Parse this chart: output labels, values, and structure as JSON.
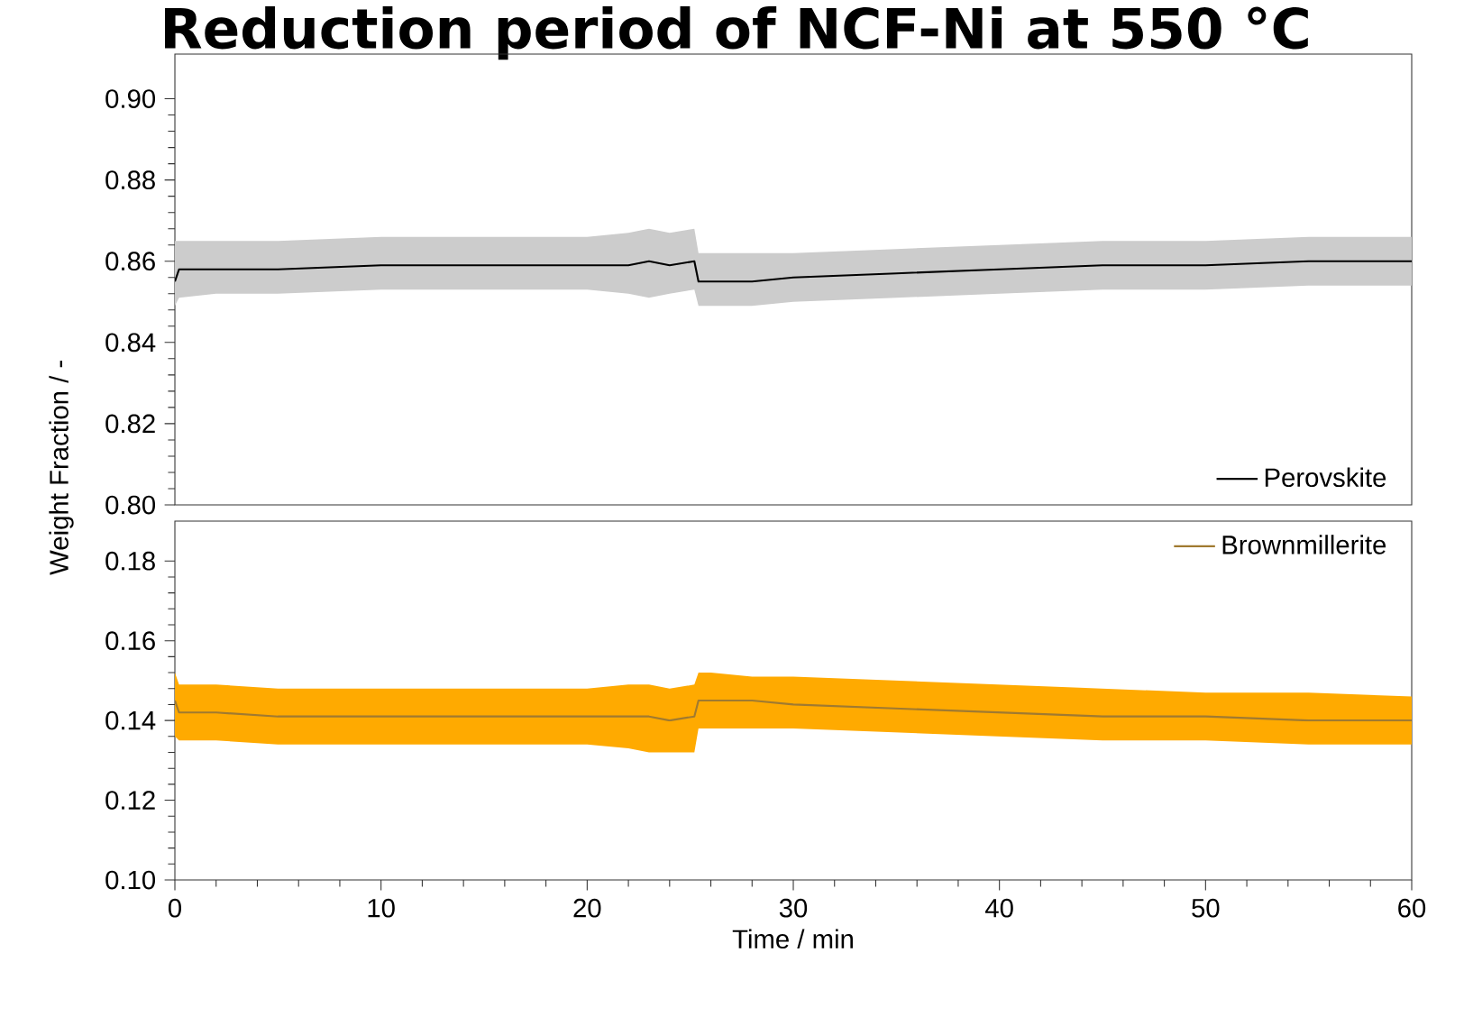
{
  "chart_data": [
    {
      "type": "line",
      "title": "Reduction period of NCF-Ni at 550 °C",
      "xlim": [
        0,
        60
      ],
      "ylim": [
        0.8,
        0.911
      ],
      "yticks": [
        {
          "value": 0.8,
          "label": "0.80"
        },
        0.82,
        0.84,
        0.86,
        0.88,
        {
          "value": 0.9,
          "label": "0.90"
        }
      ],
      "legend": "bottom right",
      "x": [
        0,
        0.2,
        2,
        5,
        10,
        15,
        20,
        22,
        23,
        24,
        25.2,
        25.4,
        26,
        28,
        30,
        35,
        40,
        45,
        50,
        55,
        60
      ],
      "series": [
        {
          "name": "Perovskite",
          "color": "#000000",
          "values": [
            0.855,
            0.858,
            0.858,
            0.858,
            0.859,
            0.859,
            0.859,
            0.859,
            0.86,
            0.859,
            0.86,
            0.855,
            0.855,
            0.855,
            0.856,
            0.857,
            0.858,
            0.859,
            0.859,
            0.86,
            0.86
          ],
          "lower": [
            0.849,
            0.851,
            0.852,
            0.852,
            0.853,
            0.853,
            0.853,
            0.852,
            0.851,
            0.852,
            0.853,
            0.849,
            0.849,
            0.849,
            0.85,
            0.851,
            0.852,
            0.853,
            0.853,
            0.854,
            0.854
          ],
          "upper": [
            0.865,
            0.865,
            0.865,
            0.865,
            0.866,
            0.866,
            0.866,
            0.867,
            0.868,
            0.867,
            0.868,
            0.862,
            0.862,
            0.862,
            0.862,
            0.863,
            0.864,
            0.865,
            0.865,
            0.866,
            0.866
          ]
        }
      ]
    },
    {
      "type": "line",
      "xlabel": "Time / min",
      "ylabel": "Weight Fraction / -",
      "xlim": [
        0,
        60
      ],
      "xticks": [
        0,
        10,
        20,
        30,
        40,
        50,
        60
      ],
      "ylim": [
        0.1,
        0.19
      ],
      "yticks": [
        {
          "value": 0.1,
          "label": "0.10"
        },
        0.12,
        0.14,
        0.16,
        0.18
      ],
      "legend": "top right",
      "x": [
        0,
        0.2,
        2,
        5,
        10,
        15,
        20,
        22,
        23,
        24,
        25.2,
        25.4,
        26,
        28,
        30,
        35,
        40,
        45,
        50,
        55,
        60
      ],
      "series": [
        {
          "name": "Brownmillerite",
          "color": "#a07a30",
          "values": [
            0.145,
            0.142,
            0.142,
            0.141,
            0.141,
            0.141,
            0.141,
            0.141,
            0.141,
            0.14,
            0.141,
            0.145,
            0.145,
            0.145,
            0.144,
            0.143,
            0.142,
            0.141,
            0.141,
            0.14,
            0.14
          ],
          "lower": [
            0.136,
            0.135,
            0.135,
            0.134,
            0.134,
            0.134,
            0.134,
            0.133,
            0.132,
            0.132,
            0.132,
            0.138,
            0.138,
            0.138,
            0.138,
            0.137,
            0.136,
            0.135,
            0.135,
            0.134,
            0.134
          ],
          "upper": [
            0.152,
            0.149,
            0.149,
            0.148,
            0.148,
            0.148,
            0.148,
            0.149,
            0.149,
            0.148,
            0.149,
            0.152,
            0.152,
            0.151,
            0.151,
            0.15,
            0.149,
            0.148,
            0.147,
            0.147,
            0.146
          ]
        }
      ]
    }
  ]
}
